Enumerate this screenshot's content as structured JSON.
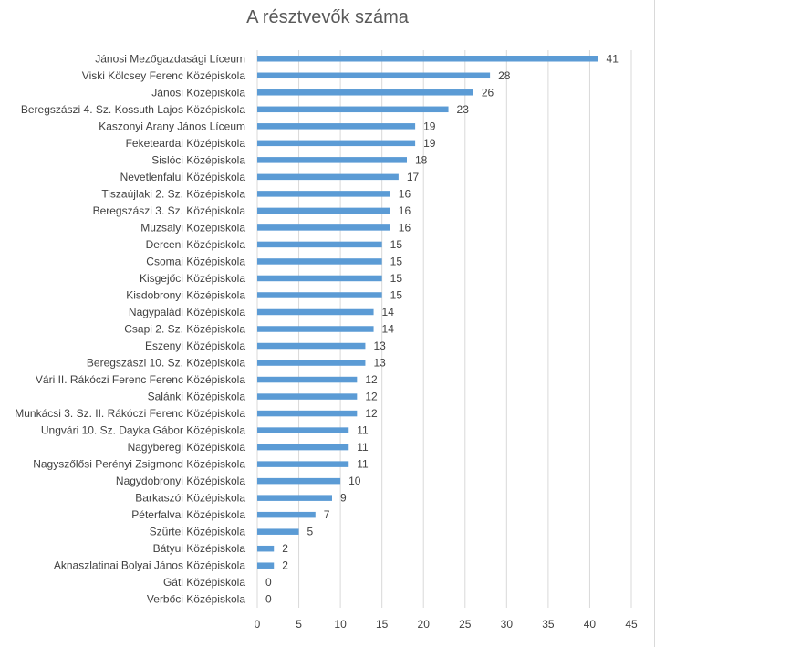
{
  "chart_data": {
    "type": "bar",
    "orientation": "horizontal",
    "title": "A résztvevők száma",
    "xlabel": "",
    "ylabel": "",
    "xlim": [
      0,
      45
    ],
    "ticks": [
      0,
      5,
      10,
      15,
      20,
      25,
      30,
      35,
      40,
      45
    ],
    "grid": true,
    "legend": "none",
    "bar_color": "#5b9bd5",
    "categories": [
      "Jánosi Mezőgazdasági Líceum",
      "Viski Kölcsey Ferenc Középiskola",
      "Jánosi Középiskola",
      "Beregszászi 4. Sz. Kossuth Lajos Középiskola",
      "Kaszonyi Arany János Líceum",
      "Feketeardai Középiskola",
      "Sislóci Középiskola",
      "Nevetlenfalui Középiskola",
      "Tiszaújlaki 2. Sz. Középiskola",
      "Beregszászi 3. Sz. Középiskola",
      "Muzsalyi Középiskola",
      "Derceni Középiskola",
      "Csomai Középiskola",
      "Kisgejőci Középiskola",
      "Kisdobronyi Középiskola",
      "Nagypaládi Középiskola",
      "Csapi 2. Sz. Középiskola",
      "Eszenyi Középiskola",
      "Beregszászi 10. Sz. Középiskola",
      "Vári II. Rákóczi Ferenc Ferenc Középiskola",
      "Salánki Középiskola",
      "Munkácsi 3. Sz. II. Rákóczi Ferenc Középiskola",
      "Ungvári 10. Sz. Dayka Gábor Középiskola",
      "Nagyberegi Középiskola",
      "Nagyszőlősi Perényi Zsigmond Középiskola",
      "Nagydobronyi Középiskola",
      "Barkaszói Középiskola",
      "Péterfalvai Középiskola",
      "Szürtei Középiskola",
      "Bátyui Középiskola",
      "Aknaszlatinai Bolyai János Középiskola",
      "Gáti Középiskola",
      "Verbőci Középiskola"
    ],
    "values": [
      41,
      28,
      26,
      23,
      19,
      19,
      18,
      17,
      16,
      16,
      16,
      15,
      15,
      15,
      15,
      14,
      14,
      13,
      13,
      12,
      12,
      12,
      11,
      11,
      11,
      10,
      9,
      7,
      5,
      2,
      2,
      0,
      0
    ]
  }
}
